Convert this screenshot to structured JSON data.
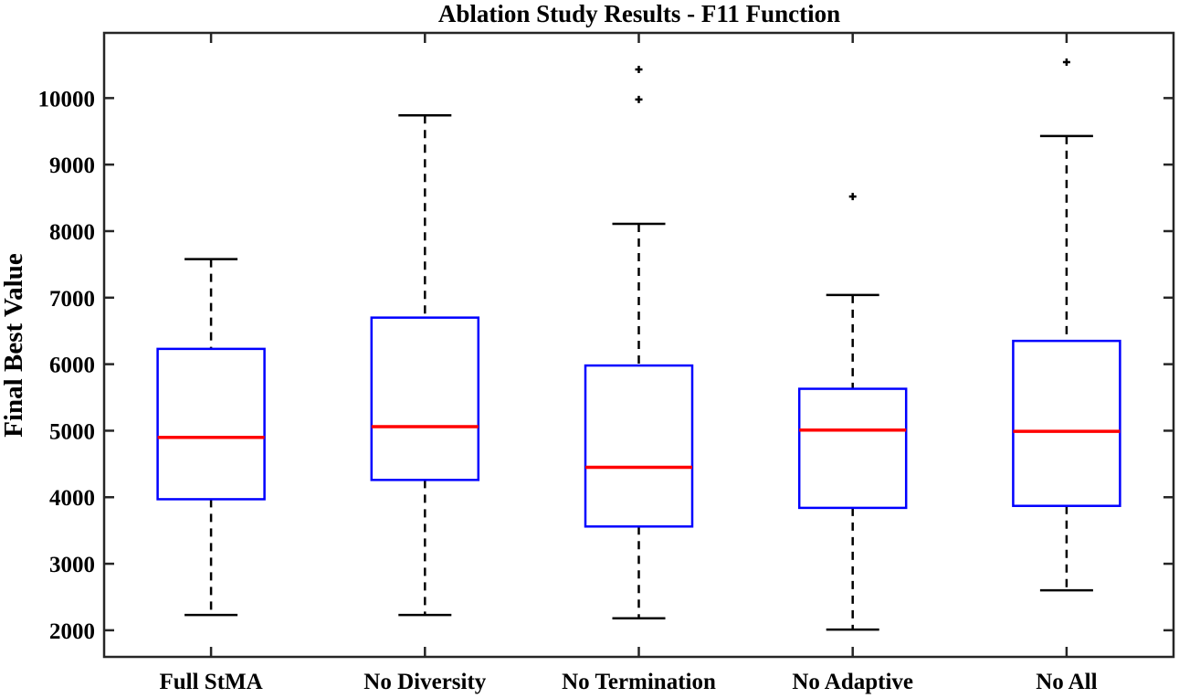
{
  "chart_data": {
    "type": "box",
    "title": "Ablation Study Results - F11 Function",
    "xlabel": "",
    "ylabel": "Final Best Value",
    "ylim": [
      1600,
      10980
    ],
    "yticks": [
      2000,
      3000,
      4000,
      5000,
      6000,
      7000,
      8000,
      9000,
      10000
    ],
    "grid": false,
    "categories": [
      "Full StMA",
      "No Diversity",
      "No Termination",
      "No Adaptive",
      "No All"
    ],
    "boxes": [
      {
        "label": "Full StMA",
        "whisker_low": 2230,
        "q1": 3970,
        "median": 4900,
        "q3": 6230,
        "whisker_high": 7580,
        "outliers": []
      },
      {
        "label": "No Diversity",
        "whisker_low": 2230,
        "q1": 4260,
        "median": 5060,
        "q3": 6700,
        "whisker_high": 9740,
        "outliers": []
      },
      {
        "label": "No Termination",
        "whisker_low": 2180,
        "q1": 3560,
        "median": 4450,
        "q3": 5980,
        "whisker_high": 8110,
        "outliers": [
          9980,
          10430
        ]
      },
      {
        "label": "No Adaptive",
        "whisker_low": 2010,
        "q1": 3840,
        "median": 5010,
        "q3": 5630,
        "whisker_high": 7040,
        "outliers": [
          8520
        ]
      },
      {
        "label": "No All",
        "whisker_low": 2600,
        "q1": 3870,
        "median": 4990,
        "q3": 6350,
        "whisker_high": 9430,
        "outliers": [
          10540
        ]
      }
    ],
    "colors": {
      "box": "#0000ff",
      "median": "#ff0000",
      "whisker": "#000000",
      "outlier": "#000000",
      "axes": "#262626"
    }
  }
}
